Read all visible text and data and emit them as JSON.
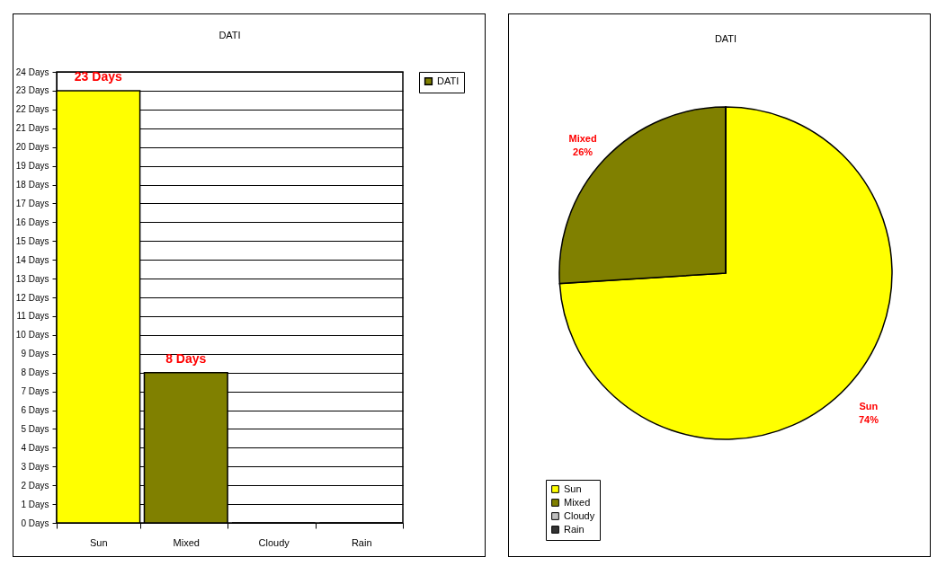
{
  "chart_data": [
    {
      "type": "bar",
      "title": "DATI",
      "categories": [
        "Sun",
        "Mixed",
        "Cloudy",
        "Rain"
      ],
      "series": [
        {
          "name": "DATI",
          "color": "#808000",
          "colors": [
            "#ffff00",
            "#808000",
            "#c0c0c0",
            "#333333"
          ],
          "values": [
            23,
            8,
            0,
            0
          ],
          "value_labels": [
            "23 Days",
            "8 Days",
            null,
            null
          ]
        }
      ],
      "ylim": [
        0,
        24
      ],
      "yticks": [
        {
          "value": 0,
          "label": "0 Days"
        },
        {
          "value": 1,
          "label": "1 Days"
        },
        {
          "value": 2,
          "label": "2 Days"
        },
        {
          "value": 3,
          "label": "3 Days"
        },
        {
          "value": 4,
          "label": "4 Days"
        },
        {
          "value": 5,
          "label": "5 Days"
        },
        {
          "value": 6,
          "label": "6 Days"
        },
        {
          "value": 7,
          "label": "7 Days"
        },
        {
          "value": 8,
          "label": "8 Days"
        },
        {
          "value": 9,
          "label": "9 Days"
        },
        {
          "value": 10,
          "label": "10 Days"
        },
        {
          "value": 11,
          "label": "11 Days"
        },
        {
          "value": 12,
          "label": "12 Days"
        },
        {
          "value": 13,
          "label": "13 Days"
        },
        {
          "value": 14,
          "label": "14 Days"
        },
        {
          "value": 15,
          "label": "15 Days"
        },
        {
          "value": 16,
          "label": "16 Days"
        },
        {
          "value": 17,
          "label": "17 Days"
        },
        {
          "value": 18,
          "label": "18 Days"
        },
        {
          "value": 19,
          "label": "19 Days"
        },
        {
          "value": 20,
          "label": "20 Days"
        },
        {
          "value": 21,
          "label": "21 Days"
        },
        {
          "value": 22,
          "label": "22 Days"
        },
        {
          "value": 23,
          "label": "23 Days"
        },
        {
          "value": 24,
          "label": "24 Days"
        }
      ],
      "grid": "y",
      "legend": "right"
    },
    {
      "type": "pie",
      "title": "DATI",
      "categories": [
        "Sun",
        "Mixed",
        "Cloudy",
        "Rain"
      ],
      "values": [
        74,
        26,
        0,
        0
      ],
      "colors": [
        "#ffff00",
        "#808000",
        "#c0c0c0",
        "#333333"
      ],
      "value_labels": [
        "74%",
        "26%",
        null,
        null
      ],
      "legend": "bottom"
    }
  ]
}
